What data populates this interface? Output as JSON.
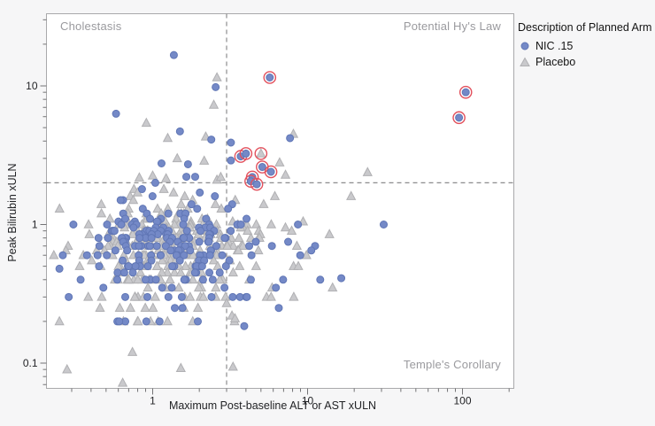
{
  "chart_data": {
    "type": "scatter",
    "xlabel": "Maximum Post-baseline ALT or AST xULN",
    "ylabel": "Peak Bilirubin xULN",
    "x_scale": "log",
    "y_scale": "log",
    "x_ticks": [
      1,
      10,
      100
    ],
    "y_ticks": [
      0.1,
      1,
      10
    ],
    "x_range": [
      0.2,
      220
    ],
    "y_range": [
      0.065,
      33
    ],
    "grid": false,
    "reference_lines": {
      "x": 3,
      "y": 2,
      "style": "dashed",
      "color": "#8c8c8e"
    },
    "quadrant_labels": {
      "top_left": "Cholestasis",
      "top_right": "Potential Hy's Law",
      "bottom_right": "Temple's Corollary"
    },
    "legend": {
      "position": "right",
      "title": "Description of Planned Arm",
      "items": [
        {
          "label": "NIC .15",
          "marker": "circle",
          "color": "#7489c7"
        },
        {
          "label": "Placebo",
          "marker": "triangle",
          "color": "#c9c9cc"
        }
      ]
    },
    "highlight_color": "#e2505c",
    "seed": 11,
    "series": [
      {
        "name": "NIC .15",
        "marker": "circle",
        "color": "#7489c7",
        "edge": "#6076b5",
        "points": [
          [
            1.37,
            16.7
          ],
          [
            2.55,
            9.8
          ],
          [
            0.58,
            6.3
          ],
          [
            1.5,
            4.7
          ],
          [
            2.39,
            4.1
          ],
          [
            3.2,
            3.9
          ],
          [
            7.7,
            4.2
          ],
          [
            1.14,
            2.76
          ],
          [
            1.69,
            2.72
          ],
          [
            1.65,
            2.21
          ],
          [
            1.88,
            2.21
          ],
          [
            1.04,
            2.0
          ],
          [
            3.2,
            2.9
          ],
          [
            31,
            1.0
          ],
          [
            16.5,
            0.41
          ],
          [
            3.9,
            0.185
          ],
          [
            1.39,
            0.25
          ],
          [
            0.25,
            0.48
          ]
        ],
        "cloud_bands": [
          [
            1.8,
            1
          ],
          [
            1.7,
            1
          ],
          [
            1.6,
            2
          ],
          [
            1.5,
            2
          ],
          [
            1.4,
            2
          ],
          [
            1.3,
            3
          ],
          [
            1.2,
            5
          ],
          [
            1.1,
            6
          ],
          [
            1.05,
            4
          ],
          [
            1.0,
            10
          ],
          [
            0.95,
            6
          ],
          [
            0.9,
            14
          ],
          [
            0.85,
            8
          ],
          [
            0.8,
            16
          ],
          [
            0.75,
            9
          ],
          [
            0.7,
            17
          ],
          [
            0.65,
            10
          ],
          [
            0.6,
            17
          ],
          [
            0.55,
            8
          ],
          [
            0.5,
            15
          ],
          [
            0.45,
            7
          ],
          [
            0.4,
            13
          ],
          [
            0.35,
            5
          ],
          [
            0.3,
            10
          ],
          [
            0.25,
            2
          ],
          [
            0.2,
            6
          ]
        ]
      },
      {
        "name": "Placebo",
        "marker": "triangle",
        "color": "#c9c9cc",
        "edge": "#b0b0b3",
        "points": [
          [
            2.6,
            11.5
          ],
          [
            2.48,
            7.3
          ],
          [
            0.91,
            5.4
          ],
          [
            1.25,
            4.2
          ],
          [
            2.2,
            4.3
          ],
          [
            8.1,
            4.5
          ],
          [
            6.6,
            2.8
          ],
          [
            7.2,
            2.28
          ],
          [
            24.4,
            2.38
          ],
          [
            19.1,
            1.6
          ],
          [
            1.44,
            3.0
          ],
          [
            2.15,
            2.88
          ],
          [
            0.82,
            2.18
          ],
          [
            1.0,
            2.25
          ],
          [
            1.22,
            2.15
          ],
          [
            2.6,
            2.1
          ],
          [
            2.75,
            2.2
          ],
          [
            0.28,
            0.09
          ],
          [
            1.52,
            0.092
          ],
          [
            3.3,
            0.094
          ],
          [
            0.64,
            0.072
          ],
          [
            0.74,
            0.12
          ],
          [
            0.23,
            0.6
          ],
          [
            3.0,
            0.27
          ],
          [
            3.25,
            0.22
          ],
          [
            3.4,
            0.21
          ],
          [
            0.25,
            0.2
          ]
        ],
        "cloud_bands": [
          [
            1.8,
            2
          ],
          [
            1.7,
            2
          ],
          [
            1.6,
            3
          ],
          [
            1.5,
            3
          ],
          [
            1.4,
            4
          ],
          [
            1.3,
            6
          ],
          [
            1.2,
            8
          ],
          [
            1.1,
            10
          ],
          [
            1.05,
            6
          ],
          [
            1.0,
            16
          ],
          [
            0.95,
            10
          ],
          [
            0.9,
            22
          ],
          [
            0.85,
            12
          ],
          [
            0.8,
            24
          ],
          [
            0.75,
            14
          ],
          [
            0.7,
            26
          ],
          [
            0.65,
            14
          ],
          [
            0.6,
            26
          ],
          [
            0.55,
            12
          ],
          [
            0.5,
            24
          ],
          [
            0.45,
            10
          ],
          [
            0.4,
            20
          ],
          [
            0.35,
            8
          ],
          [
            0.3,
            16
          ],
          [
            0.25,
            7
          ],
          [
            0.2,
            8
          ]
        ]
      }
    ],
    "cloud_x_distribution": {
      "mix": [
        {
          "w": 0.84,
          "mu": 0.06,
          "sd": 0.27
        },
        {
          "w": 0.16,
          "mu": 0.55,
          "sd": 0.33
        }
      ],
      "log10_min": -0.63,
      "log10_max": 1.2
    },
    "highlighted_points": [
      {
        "x": 5.7,
        "y": 11.5,
        "series": 0
      },
      {
        "x": 105,
        "y": 9.0,
        "series": 0
      },
      {
        "x": 95,
        "y": 5.9,
        "series": 0
      },
      {
        "x": 3.7,
        "y": 3.1,
        "series": 0
      },
      {
        "x": 4.0,
        "y": 3.25,
        "series": 0
      },
      {
        "x": 5.0,
        "y": 3.25,
        "series": 1
      },
      {
        "x": 5.1,
        "y": 2.6,
        "series": 0
      },
      {
        "x": 5.8,
        "y": 2.4,
        "series": 0
      },
      {
        "x": 4.4,
        "y": 2.2,
        "series": 0
      },
      {
        "x": 4.3,
        "y": 2.05,
        "series": 0
      },
      {
        "x": 4.7,
        "y": 1.95,
        "series": 0
      }
    ]
  }
}
